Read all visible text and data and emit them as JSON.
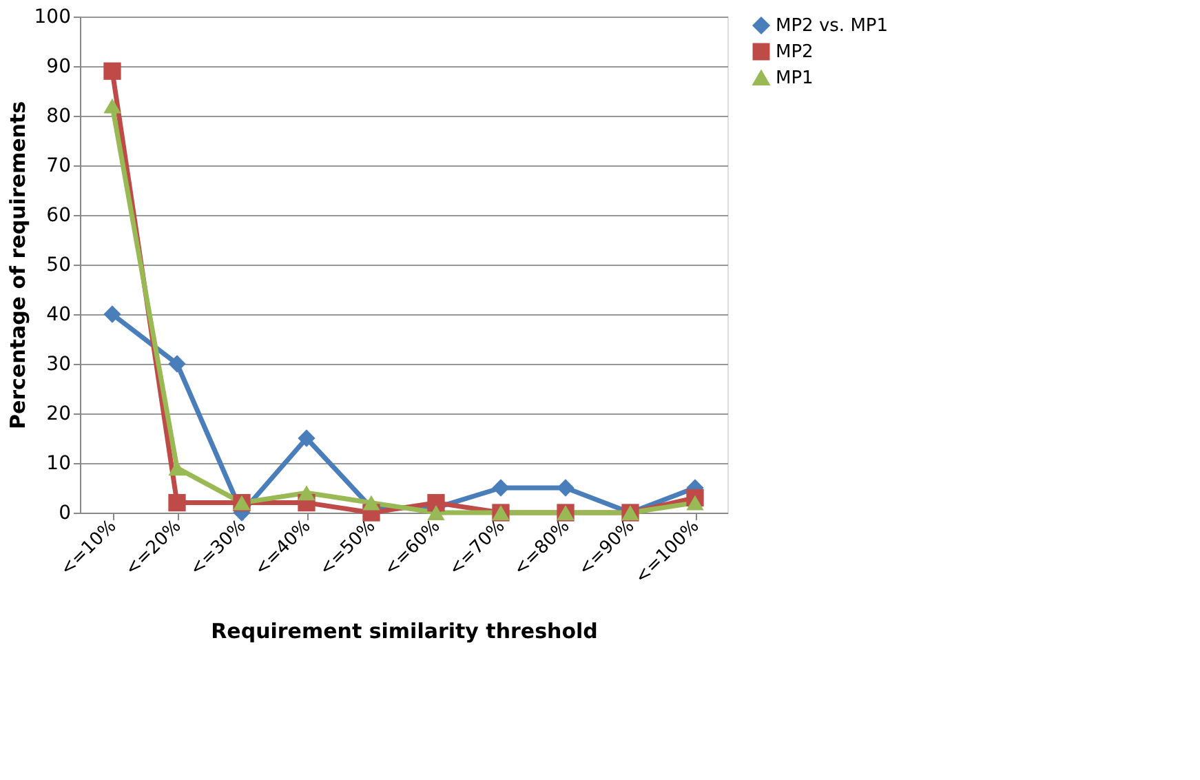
{
  "chart_data": {
    "type": "line",
    "xlabel": "Requirement similarity threshold",
    "ylabel": "Percentage of requirements",
    "categories": [
      "<=10%",
      "<=20%",
      "<=30%",
      "<=40%",
      "<=50%",
      "<=60%",
      "<=70%",
      "<=80%",
      "<=90%",
      "<=100%"
    ],
    "series": [
      {
        "name": "MP2 vs. MP1",
        "color": "#4a7ebb",
        "marker": "diamond",
        "values": [
          40,
          30,
          0,
          15,
          1,
          1,
          5,
          5,
          0,
          5
        ]
      },
      {
        "name": "MP2",
        "color": "#be4b48",
        "marker": "square",
        "values": [
          89,
          2,
          2,
          2,
          0,
          2,
          0,
          0,
          0,
          3
        ]
      },
      {
        "name": "MP1",
        "color": "#98b954",
        "marker": "triangle",
        "values": [
          82,
          9,
          2,
          4,
          2,
          0,
          0,
          0,
          0,
          2
        ]
      }
    ],
    "ylim": [
      0,
      100
    ],
    "yticks": [
      0,
      10,
      20,
      30,
      40,
      50,
      60,
      70,
      80,
      90,
      100
    ],
    "grid": "y",
    "legend": "right",
    "line_style": "solid"
  }
}
